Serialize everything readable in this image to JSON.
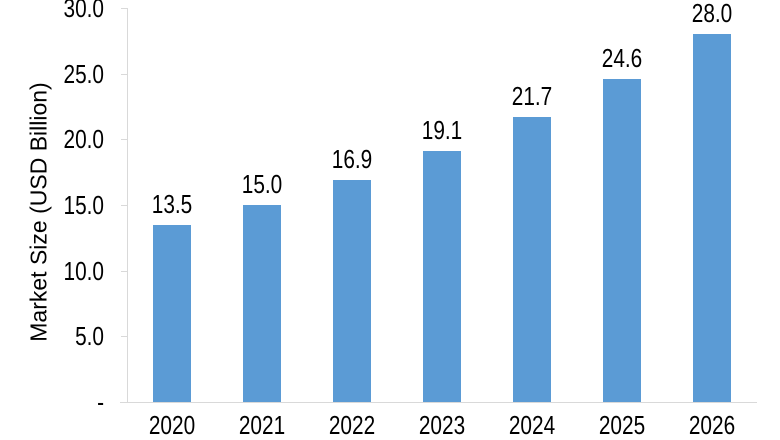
{
  "chart_data": {
    "type": "bar",
    "title": "",
    "ylabel": "Market Size (USD Billion)",
    "xlabel": "",
    "categories": [
      "2020",
      "2021",
      "2022",
      "2023",
      "2024",
      "2025",
      "2026"
    ],
    "values": [
      13.5,
      15.0,
      16.9,
      19.1,
      21.7,
      24.6,
      28.0
    ],
    "data_labels": [
      "13.5",
      "15.0",
      "16.9",
      "19.1",
      "21.7",
      "24.6",
      "28.0"
    ],
    "ylim": [
      0,
      30
    ],
    "yticks": [
      {
        "value": 0,
        "label": "-"
      },
      {
        "value": 5,
        "label": "5.0"
      },
      {
        "value": 10,
        "label": "10.0"
      },
      {
        "value": 15,
        "label": "15.0"
      },
      {
        "value": 20,
        "label": "20.0"
      },
      {
        "value": 25,
        "label": "25.0"
      },
      {
        "value": 30,
        "label": "30.0"
      }
    ],
    "grid": false,
    "legend": "none",
    "colors": {
      "bar": "#5B9BD5",
      "axis_line": "#D9D9D9",
      "text": "#000000"
    }
  }
}
